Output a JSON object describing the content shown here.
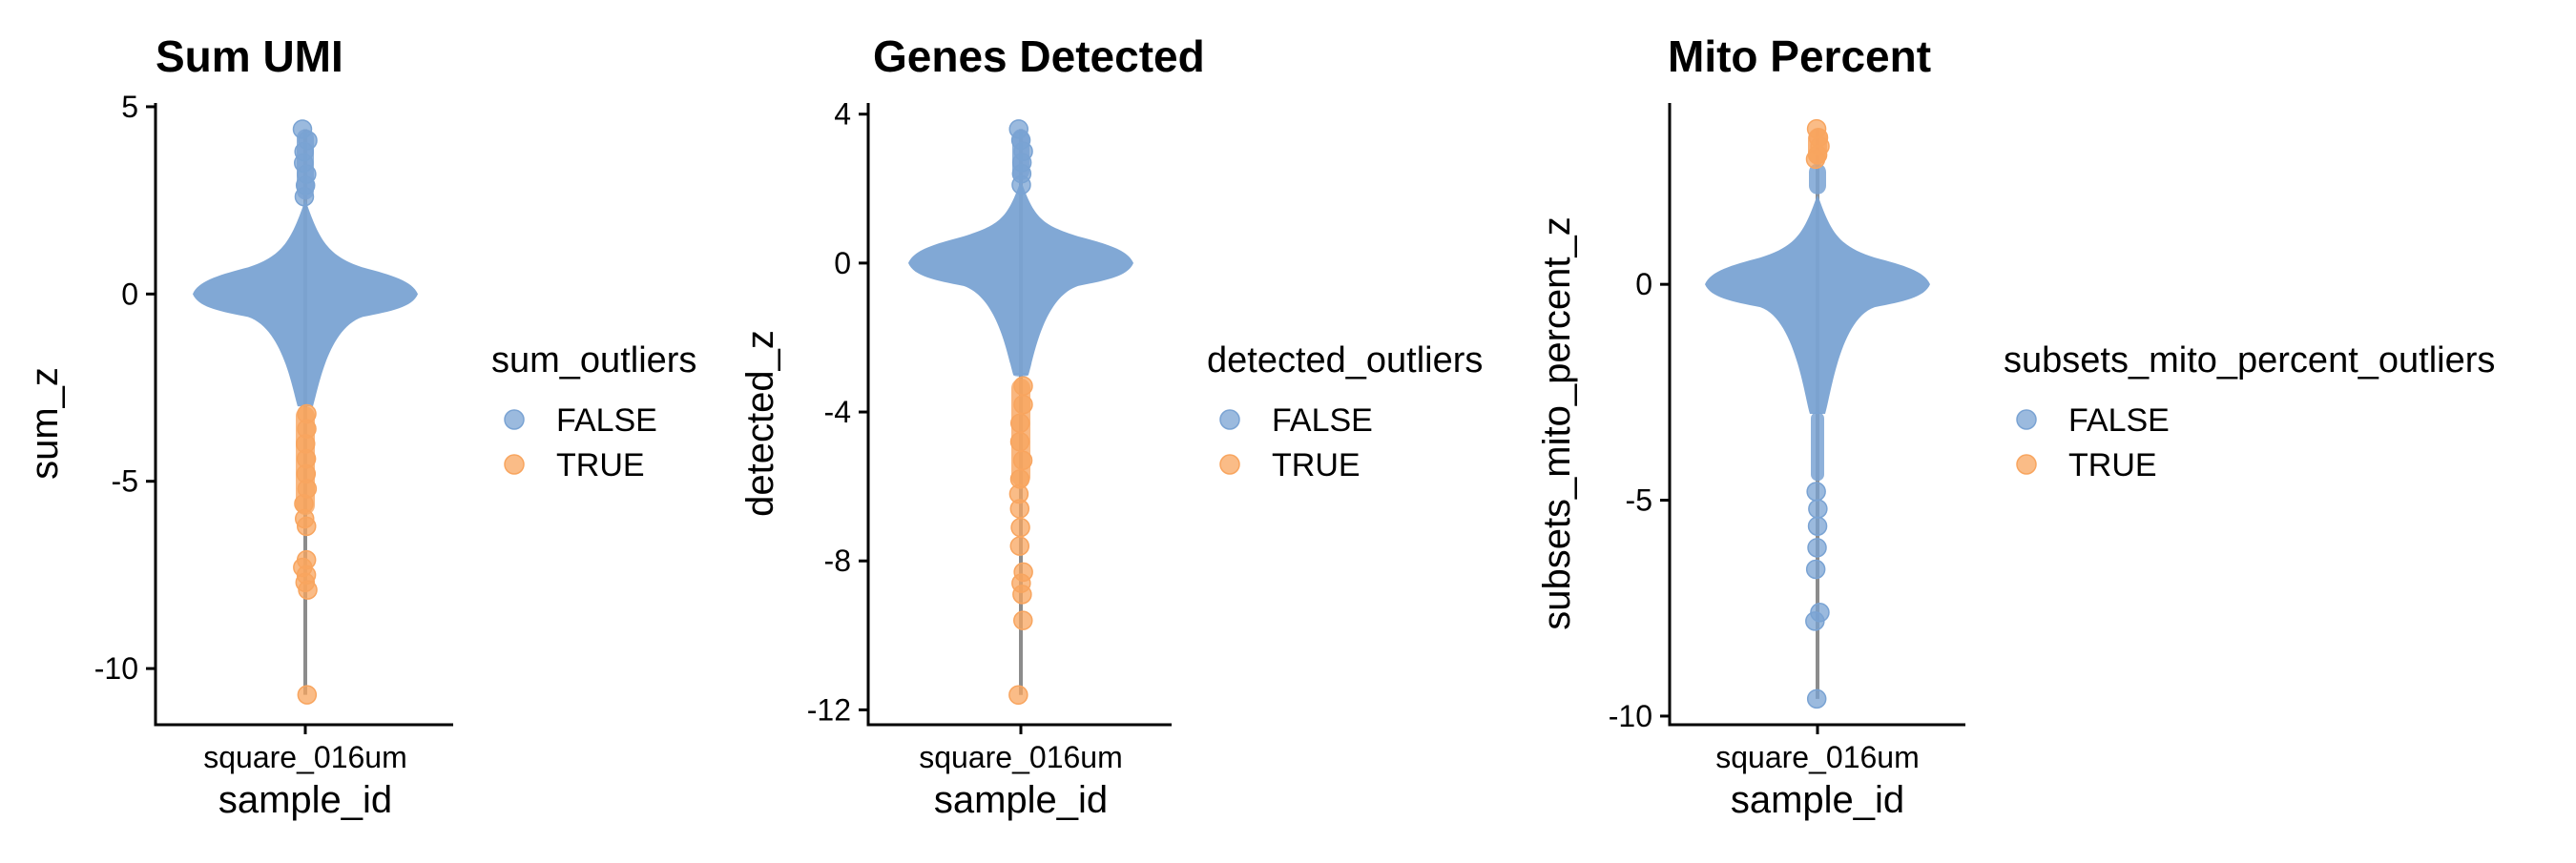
{
  "colors": {
    "false": "#7AA3D3",
    "true": "#F8A55F",
    "whisker": "#8C8C8C",
    "axis": "#000000"
  },
  "chart_data": [
    {
      "type": "scatter",
      "subtype": "violin-beeswarm",
      "title": "Sum UMI",
      "xlabel": "sample_id",
      "ylabel": "sum_z",
      "categories": [
        "square_016um"
      ],
      "yticks": [
        5,
        0,
        -5,
        -10
      ],
      "ytick_labels": [
        "5",
        "0",
        "-5",
        "-10"
      ],
      "ylim": [
        -11.5,
        5.1
      ],
      "legend": {
        "title": "sum_outliers",
        "entries": [
          "FALSE",
          "TRUE"
        ],
        "position": "right"
      },
      "grid": false,
      "distribution": {
        "max": 4.4,
        "min": -10.7,
        "body_top": 1.5,
        "body_bottom": -3.0,
        "max_half_width_z": 0.0
      },
      "outlier_rule": {
        "true_below": -3.0
      },
      "tail_points_false": [
        4.4,
        4.1,
        3.8,
        3.5,
        3.2,
        2.9,
        2.6
      ],
      "tail_points_true": [
        -3.2,
        -3.6,
        -4.0,
        -4.4,
        -4.8,
        -5.2,
        -5.6,
        -6.0,
        -6.2,
        -7.1,
        -7.3,
        -7.5,
        -7.7,
        -7.9,
        -10.7
      ]
    },
    {
      "type": "scatter",
      "subtype": "violin-beeswarm",
      "title": "Genes Detected",
      "xlabel": "sample_id",
      "ylabel": "detected_z",
      "categories": [
        "square_016um"
      ],
      "yticks": [
        4,
        0,
        -4,
        -8,
        -12
      ],
      "ytick_labels": [
        "4",
        "0",
        "-4",
        "-8",
        "-12"
      ],
      "ylim": [
        -12.4,
        4.3
      ],
      "legend": {
        "title": "detected_outliers",
        "entries": [
          "FALSE",
          "TRUE"
        ],
        "position": "right"
      },
      "grid": false,
      "distribution": {
        "max": 3.6,
        "min": -11.6,
        "body_top": 1.2,
        "body_bottom": -3.0
      },
      "outlier_rule": {
        "true_below": -3.1
      },
      "tail_points_false": [
        3.6,
        3.3,
        3.0,
        2.7,
        2.4,
        2.1
      ],
      "tail_points_true": [
        -3.3,
        -3.8,
        -4.3,
        -4.8,
        -5.3,
        -5.8,
        -6.2,
        -6.6,
        -7.1,
        -7.6,
        -8.3,
        -8.6,
        -8.9,
        -9.6,
        -11.6
      ]
    },
    {
      "type": "scatter",
      "subtype": "violin-beeswarm",
      "title": "Mito Percent",
      "xlabel": "sample_id",
      "ylabel": "subsets_mito_percent_z",
      "categories": [
        "square_016um"
      ],
      "yticks": [
        0,
        -5,
        -10
      ],
      "ytick_labels": [
        "0",
        "-5",
        "-10"
      ],
      "ylim": [
        -10.2,
        4.2
      ],
      "legend": {
        "title": "subsets_mito_percent_outliers",
        "entries": [
          "FALSE",
          "TRUE"
        ],
        "position": "right"
      },
      "grid": false,
      "distribution": {
        "max": 3.6,
        "min": -9.6,
        "body_top": 1.2,
        "body_bottom": -3.0
      },
      "outlier_rule": {
        "true_above": 2.8
      },
      "tail_points_false": [
        -4.8,
        -5.2,
        -5.6,
        -6.1,
        -6.6,
        -7.6,
        -7.8,
        -9.6
      ],
      "tail_points_true": [
        3.6,
        3.4,
        3.2,
        3.0,
        2.9
      ]
    }
  ]
}
